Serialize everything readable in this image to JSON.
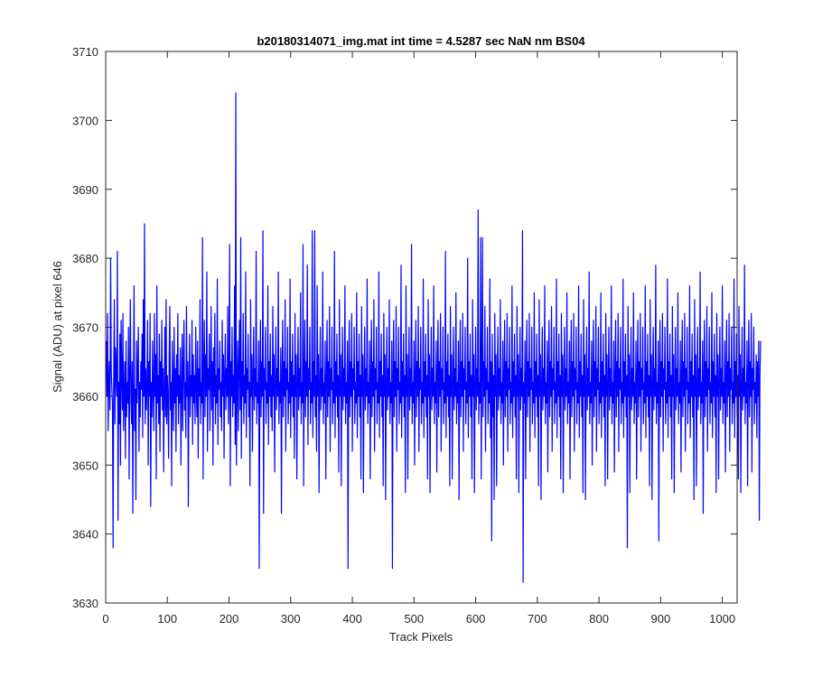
{
  "chart_data": {
    "type": "line",
    "title": "b20180314071_img.mat int time = 4.5287 sec  NaN nm BS04",
    "xlabel": "Track Pixels",
    "ylabel": "Signal (ADU) at pixel 646",
    "xlim": [
      0,
      1024
    ],
    "ylim": [
      3630,
      3710
    ],
    "x_ticks": [
      0,
      100,
      200,
      300,
      400,
      500,
      600,
      700,
      800,
      900,
      1000
    ],
    "y_ticks": [
      3630,
      3640,
      3650,
      3660,
      3670,
      3680,
      3690,
      3700,
      3710
    ],
    "grid": false,
    "legend": "none",
    "series": [
      {
        "color": "#0000ff",
        "x_start": 1,
        "x_step": 1,
        "values": [
          3668,
          3660,
          3672,
          3655,
          3662,
          3665,
          3658,
          3680,
          3664,
          3661,
          3659,
          3638,
          3662,
          3674,
          3656,
          3667,
          3663,
          3660,
          3681,
          3642,
          3662,
          3656,
          3669,
          3650,
          3671,
          3663,
          3658,
          3672,
          3655,
          3660,
          3665,
          3651,
          3668,
          3657,
          3662,
          3659,
          3670,
          3648,
          3663,
          3674,
          3660,
          3656,
          3665,
          3643,
          3662,
          3676,
          3655,
          3661,
          3645,
          3668,
          3659,
          3664,
          3670,
          3652,
          3662,
          3657,
          3665,
          3661,
          3669,
          3654,
          3674,
          3660,
          3685,
          3656,
          3664,
          3658,
          3662,
          3671,
          3650,
          3665,
          3660,
          3672,
          3644,
          3662,
          3657,
          3668,
          3661,
          3655,
          3672,
          3660,
          3666,
          3648,
          3676,
          3659,
          3663,
          3656,
          3669,
          3652,
          3665,
          3660,
          3671,
          3658,
          3664,
          3649,
          3661,
          3670,
          3657,
          3674,
          3656,
          3663,
          3660,
          3651,
          3666,
          3673,
          3658,
          3662,
          3647,
          3668,
          3661,
          3655,
          3670,
          3659,
          3664,
          3652,
          3666,
          3660,
          3672,
          3656,
          3663,
          3659,
          3667,
          3650,
          3661,
          3669,
          3655,
          3664,
          3671,
          3658,
          3662,
          3654,
          3673,
          3660,
          3665,
          3644,
          3662,
          3669,
          3657,
          3663,
          3660,
          3671,
          3653,
          3666,
          3659,
          3663,
          3656,
          3670,
          3661,
          3657,
          3668,
          3651,
          3664,
          3660,
          3674,
          3656,
          3662,
          3659,
          3683,
          3648,
          3663,
          3671,
          3657,
          3666,
          3660,
          3678,
          3652,
          3664,
          3661,
          3669,
          3655,
          3662,
          3673,
          3658,
          3665,
          3650,
          3667,
          3660,
          3672,
          3656,
          3663,
          3659,
          3677,
          3653,
          3664,
          3661,
          3668,
          3657,
          3662,
          3655,
          3671,
          3660,
          3666,
          3651,
          3663,
          3669,
          3658,
          3664,
          3660,
          3673,
          3656,
          3662,
          3682,
          3647,
          3665,
          3660,
          3670,
          3657,
          3663,
          3659,
          3676,
          3653,
          3704,
          3650,
          3661,
          3668,
          3655,
          3664,
          3671,
          3658,
          3683,
          3651,
          3665,
          3660,
          3672,
          3656,
          3663,
          3659,
          3678,
          3654,
          3664,
          3661,
          3669,
          3657,
          3662,
          3647,
          3674,
          3660,
          3666,
          3652,
          3663,
          3670,
          3658,
          3664,
          3660,
          3681,
          3656,
          3662,
          3659,
          3668,
          3635,
          3663,
          3671,
          3657,
          3665,
          3660,
          3684,
          3643,
          3664,
          3661,
          3670,
          3656,
          3662,
          3659,
          3676,
          3653,
          3665,
          3660,
          3669,
          3657,
          3663,
          3655,
          3673,
          3660,
          3666,
          3649,
          3662,
          3670,
          3658,
          3664,
          3660,
          3678,
          3656,
          3662,
          3659,
          3667,
          3643,
          3663,
          3671,
          3657,
          3665,
          3660,
          3674,
          3652,
          3664,
          3661,
          3670,
          3656,
          3662,
          3659,
          3677,
          3654,
          3665,
          3660,
          3669,
          3657,
          3663,
          3651,
          3672,
          3660,
          3666,
          3648,
          3662,
          3670,
          3658,
          3664,
          3660,
          3675,
          3656,
          3662,
          3659,
          3682,
          3647,
          3663,
          3671,
          3657,
          3665,
          3660,
          3679,
          3653,
          3664,
          3661,
          3670,
          3656,
          3662,
          3659,
          3684,
          3654,
          3665,
          3660,
          3684,
          3657,
          3663,
          3652,
          3676,
          3660,
          3666,
          3646,
          3662,
          3670,
          3658,
          3664,
          3660,
          3678,
          3656,
          3662,
          3659,
          3668,
          3648,
          3663,
          3671,
          3657,
          3665,
          3660,
          3673,
          3652,
          3664,
          3661,
          3670,
          3656,
          3662,
          3659,
          3681,
          3654,
          3665,
          3660,
          3669,
          3657,
          3663,
          3649,
          3674,
          3660,
          3666,
          3647,
          3662,
          3670,
          3658,
          3664,
          3660,
          3676,
          3656,
          3662,
          3659,
          3668,
          3635,
          3663,
          3671,
          3657,
          3665,
          3660,
          3672,
          3652,
          3664,
          3661,
          3670,
          3656,
          3662,
          3659,
          3675,
          3654,
          3665,
          3660,
          3669,
          3657,
          3663,
          3648,
          3673,
          3660,
          3666,
          3646,
          3662,
          3670,
          3658,
          3664,
          3660,
          3677,
          3656,
          3662,
          3659,
          3668,
          3648,
          3663,
          3671,
          3657,
          3665,
          3660,
          3674,
          3652,
          3664,
          3661,
          3670,
          3656,
          3662,
          3659,
          3678,
          3654,
          3665,
          3660,
          3669,
          3657,
          3663,
          3647,
          3672,
          3660,
          3666,
          3645,
          3662,
          3670,
          3658,
          3664,
          3660,
          3674,
          3656,
          3662,
          3659,
          3668,
          3635,
          3663,
          3671,
          3657,
          3665,
          3660,
          3673,
          3652,
          3664,
          3661,
          3670,
          3656,
          3662,
          3659,
          3679,
          3654,
          3665,
          3660,
          3669,
          3657,
          3663,
          3646,
          3676,
          3660,
          3666,
          3648,
          3662,
          3670,
          3658,
          3664,
          3660,
          3682,
          3656,
          3662,
          3659,
          3668,
          3650,
          3663,
          3671,
          3657,
          3665,
          3660,
          3673,
          3652,
          3664,
          3661,
          3670,
          3656,
          3662,
          3659,
          3677,
          3654,
          3665,
          3660,
          3669,
          3657,
          3663,
          3648,
          3674,
          3660,
          3666,
          3646,
          3662,
          3670,
          3658,
          3664,
          3660,
          3676,
          3656,
          3662,
          3659,
          3668,
          3649,
          3663,
          3671,
          3657,
          3665,
          3660,
          3672,
          3652,
          3664,
          3661,
          3670,
          3656,
          3662,
          3659,
          3681,
          3654,
          3665,
          3660,
          3669,
          3657,
          3663,
          3647,
          3673,
          3660,
          3666,
          3648,
          3662,
          3670,
          3658,
          3664,
          3660,
          3675,
          3656,
          3662,
          3659,
          3668,
          3645,
          3663,
          3671,
          3657,
          3665,
          3660,
          3672,
          3652,
          3664,
          3661,
          3670,
          3656,
          3662,
          3659,
          3680,
          3654,
          3665,
          3660,
          3669,
          3657,
          3663,
          3648,
          3674,
          3660,
          3666,
          3646,
          3662,
          3670,
          3658,
          3664,
          3660,
          3687,
          3656,
          3662,
          3659,
          3683,
          3648,
          3663,
          3683,
          3657,
          3665,
          3660,
          3673,
          3652,
          3664,
          3661,
          3670,
          3656,
          3662,
          3659,
          3677,
          3654,
          3665,
          3639,
          3669,
          3657,
          3663,
          3645,
          3672,
          3660,
          3666,
          3647,
          3662,
          3670,
          3658,
          3664,
          3660,
          3674,
          3656,
          3662,
          3659,
          3668,
          3650,
          3663,
          3671,
          3657,
          3665,
          3660,
          3672,
          3652,
          3664,
          3661,
          3670,
          3656,
          3662,
          3659,
          3676,
          3654,
          3665,
          3660,
          3669,
          3657,
          3663,
          3648,
          3673,
          3660,
          3666,
          3646,
          3662,
          3670,
          3658,
          3664,
          3660,
          3684,
          3633,
          3662,
          3659,
          3668,
          3648,
          3663,
          3671,
          3657,
          3665,
          3660,
          3672,
          3652,
          3664,
          3661,
          3670,
          3656,
          3662,
          3659,
          3675,
          3654,
          3665,
          3660,
          3669,
          3657,
          3663,
          3647,
          3674,
          3660,
          3666,
          3645,
          3662,
          3670,
          3658,
          3664,
          3660,
          3676,
          3656,
          3662,
          3659,
          3668,
          3649,
          3663,
          3671,
          3657,
          3665,
          3660,
          3673,
          3652,
          3664,
          3661,
          3670,
          3656,
          3662,
          3659,
          3677,
          3654,
          3665,
          3660,
          3669,
          3657,
          3663,
          3648,
          3672,
          3660,
          3666,
          3646,
          3662,
          3670,
          3658,
          3664,
          3660,
          3675,
          3656,
          3662,
          3659,
          3668,
          3648,
          3663,
          3671,
          3657,
          3665,
          3660,
          3672,
          3652,
          3664,
          3661,
          3670,
          3656,
          3662,
          3659,
          3676,
          3654,
          3665,
          3660,
          3669,
          3657,
          3663,
          3646,
          3674,
          3660,
          3666,
          3645,
          3662,
          3670,
          3658,
          3664,
          3660,
          3678,
          3656,
          3662,
          3659,
          3668,
          3650,
          3663,
          3671,
          3657,
          3665,
          3660,
          3673,
          3652,
          3664,
          3661,
          3670,
          3656,
          3662,
          3659,
          3675,
          3654,
          3665,
          3660,
          3669,
          3657,
          3663,
          3647,
          3672,
          3660,
          3666,
          3648,
          3662,
          3670,
          3658,
          3664,
          3660,
          3676,
          3656,
          3662,
          3659,
          3668,
          3649,
          3663,
          3671,
          3657,
          3665,
          3660,
          3672,
          3652,
          3664,
          3661,
          3670,
          3656,
          3662,
          3659,
          3677,
          3654,
          3665,
          3660,
          3669,
          3657,
          3663,
          3638,
          3673,
          3660,
          3666,
          3646,
          3662,
          3670,
          3658,
          3664,
          3660,
          3675,
          3656,
          3662,
          3659,
          3668,
          3648,
          3663,
          3671,
          3657,
          3665,
          3660,
          3672,
          3652,
          3664,
          3661,
          3670,
          3656,
          3662,
          3659,
          3676,
          3654,
          3665,
          3660,
          3669,
          3657,
          3663,
          3647,
          3674,
          3660,
          3666,
          3645,
          3662,
          3670,
          3658,
          3664,
          3660,
          3679,
          3656,
          3662,
          3659,
          3668,
          3639,
          3663,
          3671,
          3657,
          3665,
          3660,
          3672,
          3652,
          3664,
          3661,
          3670,
          3656,
          3662,
          3659,
          3677,
          3654,
          3665,
          3660,
          3669,
          3657,
          3663,
          3648,
          3673,
          3660,
          3666,
          3646,
          3662,
          3670,
          3658,
          3664,
          3660,
          3675,
          3656,
          3662,
          3659,
          3668,
          3649,
          3663,
          3671,
          3657,
          3665,
          3660,
          3672,
          3652,
          3664,
          3661,
          3670,
          3656,
          3662,
          3659,
          3676,
          3654,
          3665,
          3660,
          3669,
          3657,
          3663,
          3645,
          3674,
          3660,
          3666,
          3647,
          3662,
          3670,
          3658,
          3664,
          3660,
          3678,
          3656,
          3662,
          3659,
          3668,
          3643,
          3663,
          3671,
          3657,
          3665,
          3660,
          3673,
          3652,
          3664,
          3661,
          3670,
          3656,
          3662,
          3659,
          3675,
          3654,
          3665,
          3660,
          3669,
          3657,
          3663,
          3646,
          3672,
          3660,
          3666,
          3648,
          3662,
          3670,
          3658,
          3664,
          3660,
          3676,
          3656,
          3662,
          3659,
          3668,
          3649,
          3663,
          3671,
          3657,
          3665,
          3660,
          3672,
          3652,
          3664,
          3661,
          3670,
          3656,
          3662,
          3659,
          3677,
          3654,
          3665,
          3660,
          3669,
          3657,
          3663,
          3648,
          3673,
          3660,
          3666,
          3646,
          3662,
          3670,
          3658,
          3664,
          3660,
          3679,
          3656,
          3662,
          3659,
          3668,
          3647,
          3663,
          3671,
          3657,
          3665,
          3660,
          3672,
          3649,
          3664,
          3661,
          3670,
          3656,
          3662,
          3659,
          3666,
          3654,
          3665,
          3660,
          3668,
          3642,
          3663,
          3668
        ]
      }
    ]
  }
}
